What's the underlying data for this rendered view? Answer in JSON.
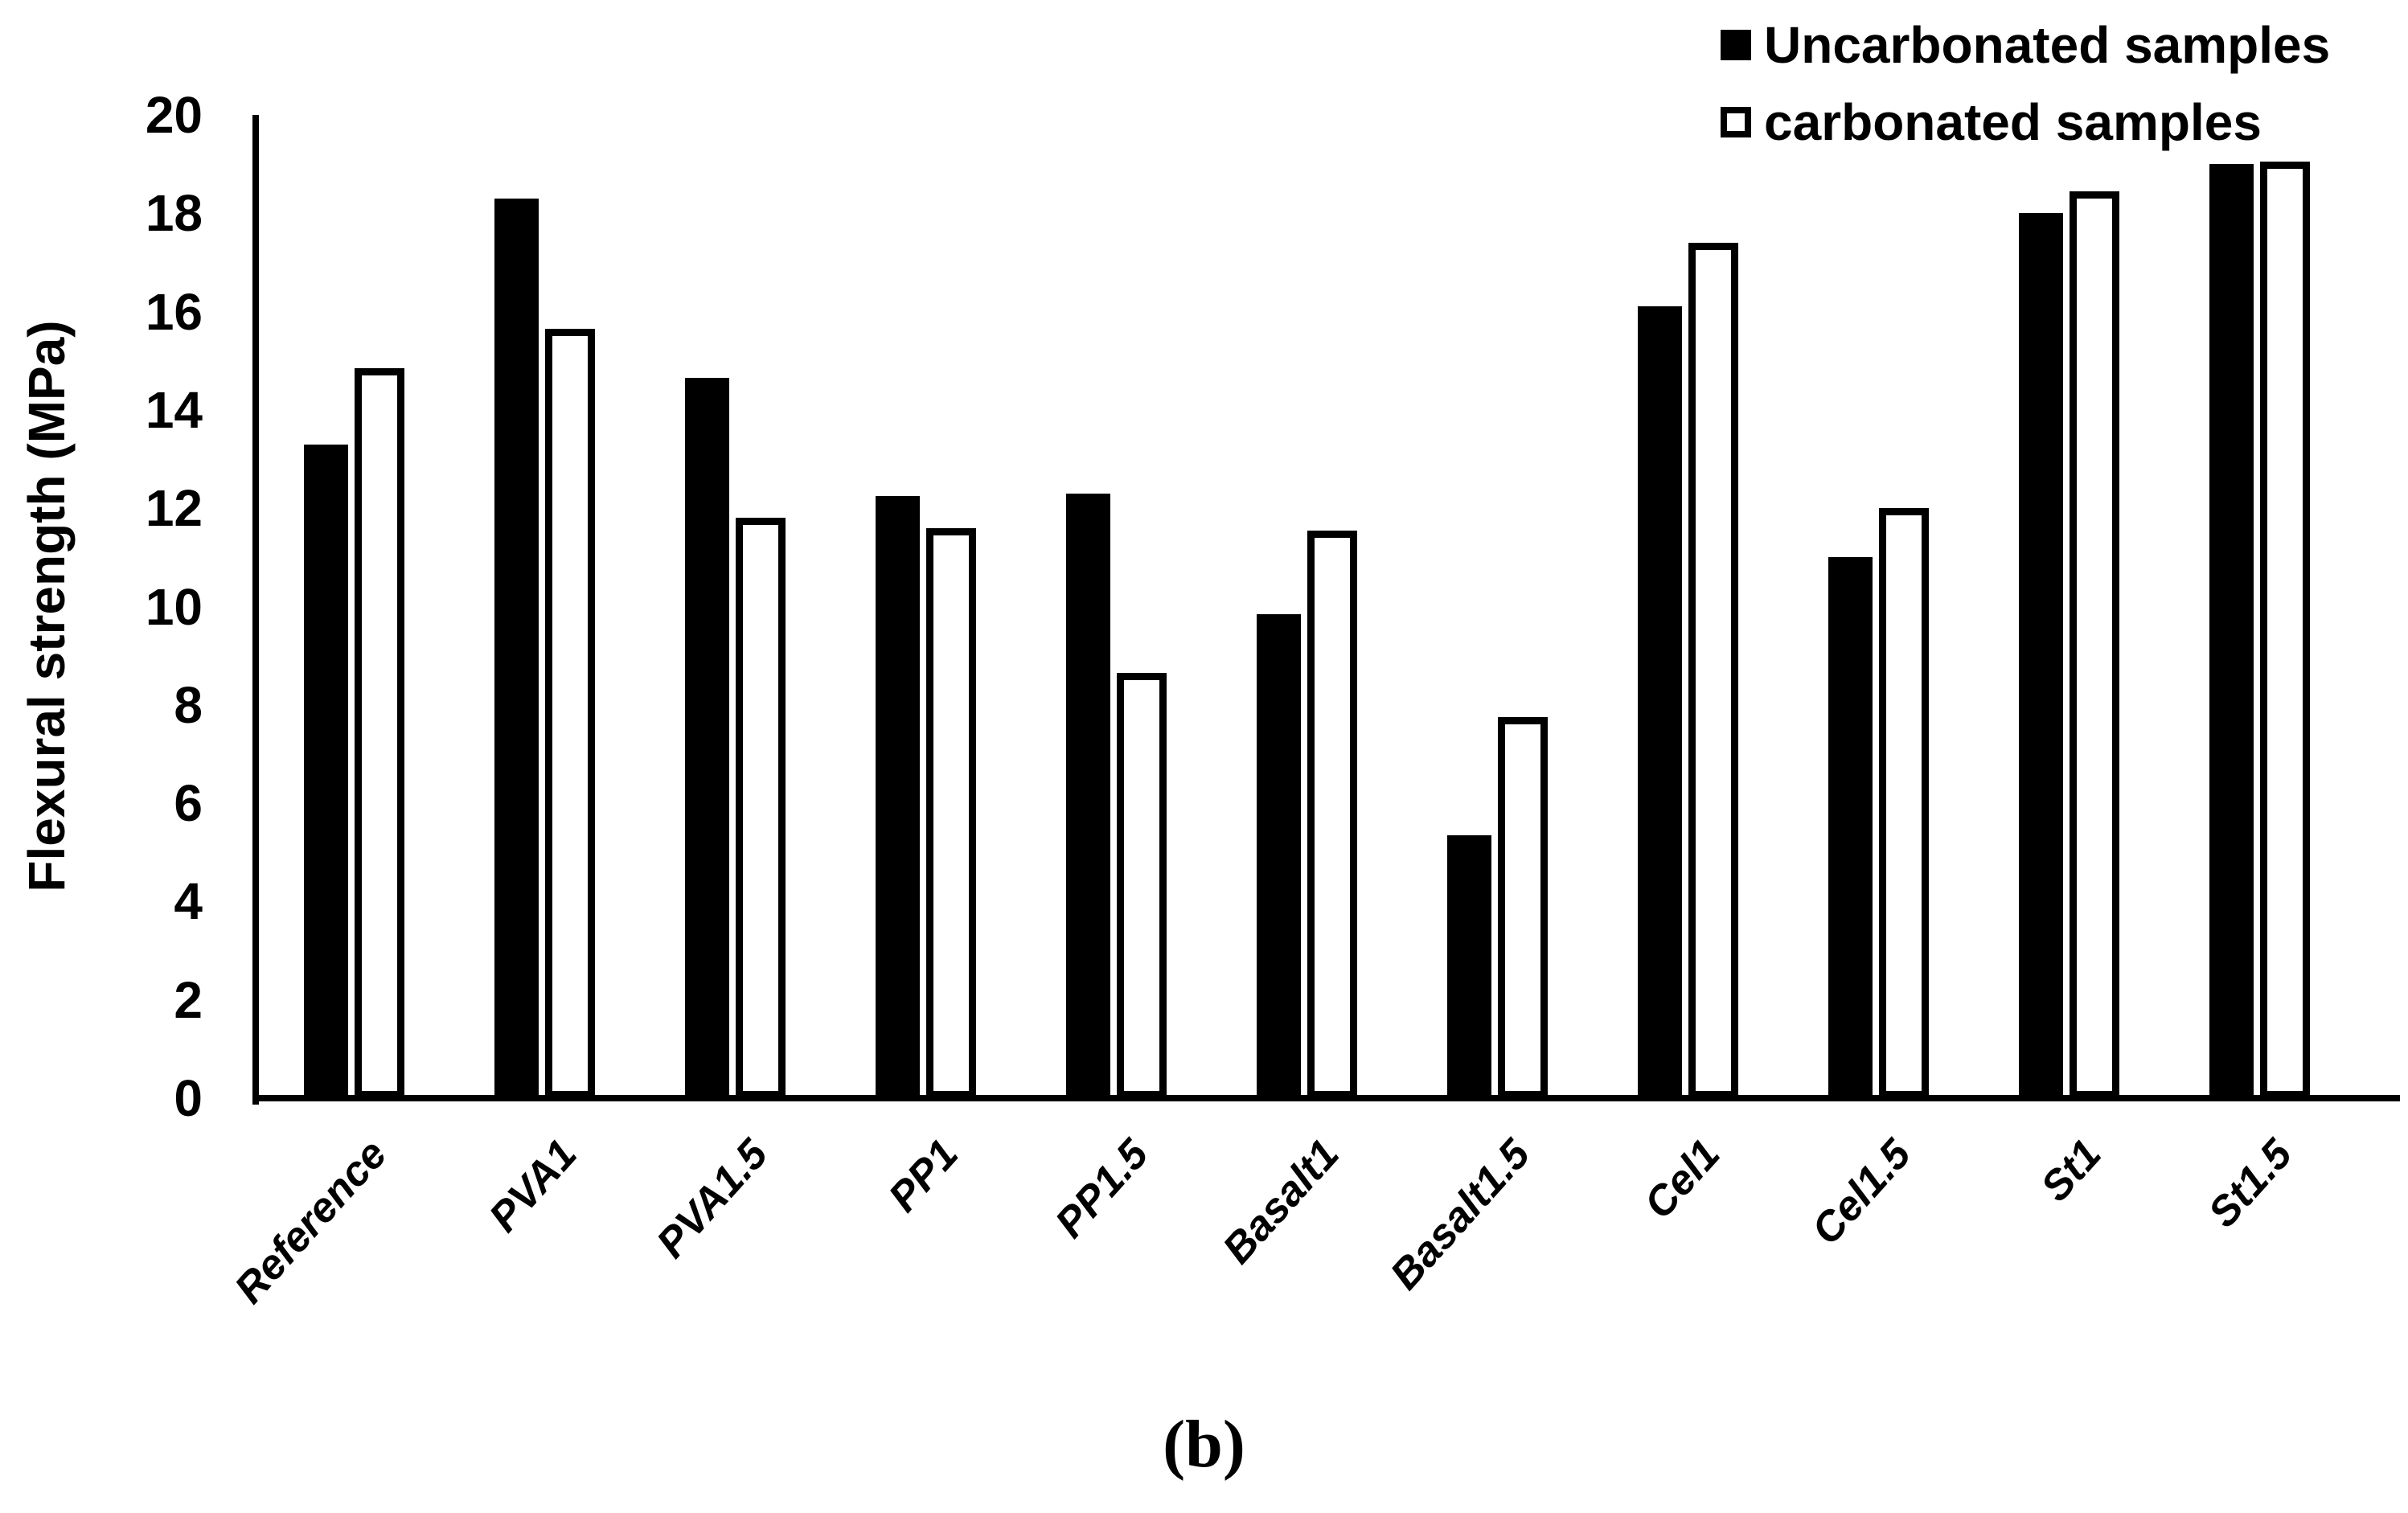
{
  "figure": {
    "caption": "(b)",
    "background": "#ffffff",
    "bar_fill_color": "#000000",
    "bar_hollow_fill": "#ffffff",
    "bar_border_color": "#000000"
  },
  "chart_data": {
    "type": "bar",
    "title": "",
    "xlabel": "",
    "ylabel": "Flexural strength (MPa)",
    "ylim": [
      0,
      20
    ],
    "yticks": [
      0,
      2,
      4,
      6,
      8,
      10,
      12,
      14,
      16,
      18,
      20
    ],
    "grid": false,
    "legend_position": "top-right",
    "categories": [
      "Reference",
      "PVA1",
      "PVA1.5",
      "PP1",
      "PP1.5",
      "Basalt1",
      "Basalt1.5",
      "Cel1",
      "Cel1.5",
      "St1",
      "St1.5"
    ],
    "series": [
      {
        "name": "Uncarbonated samples",
        "style": "filled",
        "fill": "#000000",
        "values": [
          13.3,
          18.3,
          14.65,
          12.25,
          12.3,
          9.85,
          5.35,
          16.1,
          11.0,
          18.0,
          19.0
        ]
      },
      {
        "name": "carbonated samples",
        "style": "hollow",
        "fill": "#ffffff",
        "border": "#000000",
        "values": [
          14.85,
          15.65,
          11.8,
          11.6,
          8.65,
          11.55,
          7.75,
          17.4,
          12.0,
          18.45,
          19.05
        ]
      }
    ]
  }
}
